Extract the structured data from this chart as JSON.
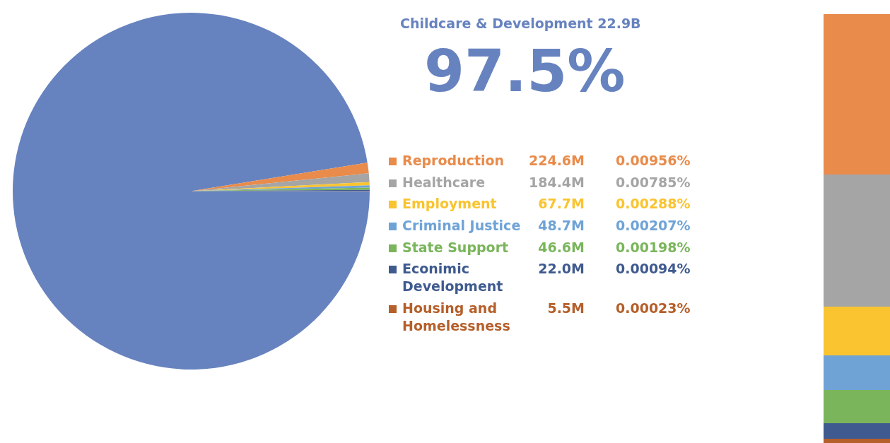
{
  "chart_data": {
    "type": "pie",
    "categories": [
      "Childcare & Development",
      "Reproduction",
      "Healthcare",
      "Employment",
      "Criminal Justice",
      "State Support",
      "Econimic Development",
      "Housing and Homelessness"
    ],
    "values": [
      22900000000,
      224600000,
      184400000,
      67700000,
      48700000,
      46600000,
      22000000,
      5500000
    ],
    "value_labels": [
      "22.9B",
      "224.6M",
      "184.4M",
      "67.7M",
      "48.7M",
      "46.6M",
      "22.0M",
      "5.5M"
    ],
    "colors": [
      "#6783bf",
      "#e98b4a",
      "#a5a5a5",
      "#f9c430",
      "#6fa3d6",
      "#7ab55b",
      "#3f5a8f",
      "#b55f2a"
    ],
    "annotations": [
      "97.5%",
      "0.00956%",
      "0.00785%",
      "0.00288%",
      "0.00207%",
      "0.00198%",
      "0.00094%",
      "0.00023%"
    ],
    "legend": "right"
  }
}
